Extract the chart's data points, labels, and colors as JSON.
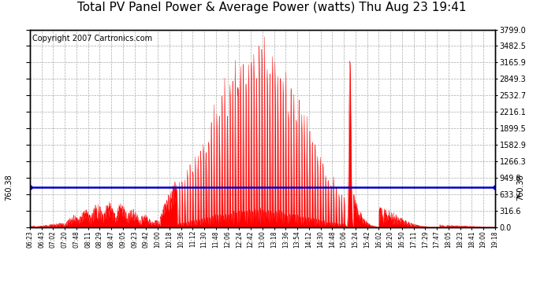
{
  "title": "Total PV Panel Power & Average Power (watts) Thu Aug 23 19:41",
  "copyright": "Copyright 2007 Cartronics.com",
  "average_value": 760.38,
  "y_max": 3799.0,
  "y_min": 0.0,
  "y_ticks": [
    0.0,
    316.6,
    633.2,
    949.8,
    1266.3,
    1582.9,
    1899.5,
    2216.1,
    2532.7,
    2849.3,
    3165.9,
    3482.5,
    3799.0
  ],
  "x_labels": [
    "06:23",
    "06:43",
    "07:02",
    "07:20",
    "07:48",
    "08:11",
    "08:29",
    "08:47",
    "09:05",
    "09:23",
    "09:42",
    "10:00",
    "10:18",
    "10:36",
    "11:12",
    "11:30",
    "11:48",
    "12:06",
    "12:24",
    "12:42",
    "13:00",
    "13:18",
    "13:36",
    "13:54",
    "14:12",
    "14:30",
    "14:48",
    "15:06",
    "15:24",
    "15:42",
    "16:02",
    "16:20",
    "16:50",
    "17:11",
    "17:29",
    "17:47",
    "18:05",
    "18:23",
    "18:41",
    "19:00",
    "19:18"
  ],
  "fill_color": "#FF0000",
  "avg_line_color": "#0000CC",
  "bg_color": "#FFFFFF",
  "grid_color": "#AAAAAA",
  "title_fontsize": 11,
  "copyright_fontsize": 7,
  "avg_label": "760.38"
}
